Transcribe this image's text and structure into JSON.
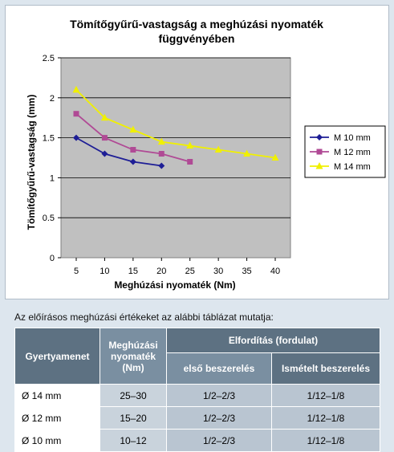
{
  "chart_data": {
    "type": "line",
    "title": "Tömítőgyűrű-vastagság a meghúzási nyomaték függvényében",
    "title_lines": [
      "Tömítőgyűrű-vastagság a meghúzási nyomaték",
      "függvényében"
    ],
    "xlabel": "Meghúzási nyomaték (Nm)",
    "ylabel": "Tömítőgyűrű-vastagság (mm)",
    "x_ticks": [
      "5",
      "10",
      "15",
      "20",
      "25",
      "30",
      "35",
      "40"
    ],
    "y_ticks": [
      "0",
      "0.5",
      "1",
      "1.5",
      "2",
      "2.5"
    ],
    "xlim": [
      5,
      40
    ],
    "ylim": [
      0,
      2.5
    ],
    "grid": "horizontal",
    "legend": "right",
    "plot_background": "#c0c0c0",
    "series": [
      {
        "name": "M 10 mm",
        "color": "#1e1e96",
        "marker": "diamond",
        "x": [
          5,
          10,
          15,
          20
        ],
        "y": [
          1.5,
          1.3,
          1.2,
          1.15
        ]
      },
      {
        "name": "M 12 mm",
        "color": "#b04a95",
        "marker": "square",
        "x": [
          5,
          10,
          15,
          20,
          25
        ],
        "y": [
          1.8,
          1.5,
          1.35,
          1.3,
          1.2
        ]
      },
      {
        "name": "M 14 mm",
        "color": "#f0f000",
        "marker": "triangle",
        "x": [
          5,
          10,
          15,
          20,
          25,
          30,
          35,
          40
        ],
        "y": [
          2.1,
          1.75,
          1.6,
          1.45,
          1.4,
          1.35,
          1.3,
          1.25
        ]
      }
    ]
  },
  "intro_text": "Az előírásos meghúzási értékeket az alábbi táblázat mutatja:",
  "table": {
    "headers": {
      "thread": "Gyertyamenet",
      "torque_line1": "Meghúzási",
      "torque_line2": "nyomaték",
      "torque_line3": "(Nm)",
      "rotation": "Elfordítás (fordulat)",
      "first_install": "első beszerelés",
      "repeat_install": "Ismételt beszerelés"
    },
    "rows": [
      {
        "thread": "Ø 14 mm",
        "torque": "25–30",
        "first": "1/2–2/3",
        "repeat": "1/12–1/8"
      },
      {
        "thread": "Ø 12 mm",
        "torque": "15–20",
        "first": "1/2–2/3",
        "repeat": "1/12–1/8"
      },
      {
        "thread": "Ø 10 mm",
        "torque": "10–12",
        "first": "1/2–2/3",
        "repeat": "1/12–1/8"
      }
    ]
  }
}
